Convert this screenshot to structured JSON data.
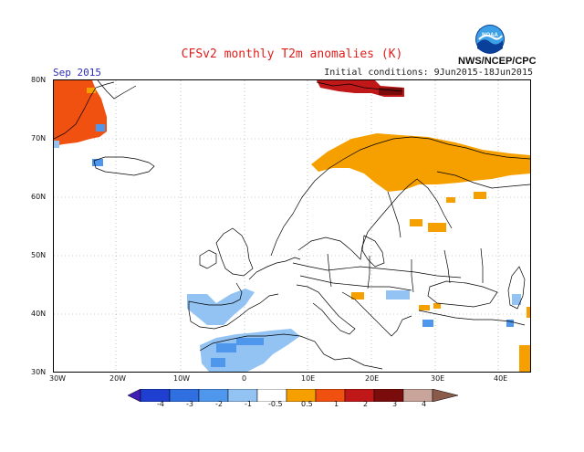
{
  "header": {
    "title": "CFSv2 monthly T2m anomalies (K)",
    "month": "Sep 2015",
    "initial_conditions": "Initial conditions: 9Jun2015-18Jun2015",
    "agency": "NWS/NCEP/CPC",
    "logo_text": "NOAA"
  },
  "axes": {
    "lat_labels": [
      "80N",
      "70N",
      "60N",
      "50N",
      "40N",
      "30N"
    ],
    "lon_labels": [
      "30W",
      "20W",
      "10W",
      "0",
      "10E",
      "20E",
      "30E",
      "40E"
    ]
  },
  "colorbar": {
    "labels": [
      "-4",
      "-3",
      "-2",
      "-1",
      "-0.5",
      "0.5",
      "1",
      "2",
      "3",
      "4"
    ],
    "colors": [
      "#3f1fb5",
      "#1f3fd0",
      "#2f6fe0",
      "#4f97ec",
      "#93c3f3",
      "#ffffff",
      "#f6a000",
      "#f05010",
      "#c01818",
      "#7a0c0c",
      "#c8a49a",
      "#8a5a4a"
    ]
  },
  "colors": {
    "warm_moderate": "#f6a000",
    "warm_strong": "#f05010",
    "warm_very_strong": "#c01818",
    "warm_extreme": "#7a0c0c",
    "cool_light": "#93c3f3",
    "cool_moderate": "#4f97ec",
    "coastline": "#000000",
    "grid": "#9a9a9a"
  },
  "anomaly_regions": [
    {
      "name": "Greenland",
      "category": "warm_strong"
    },
    {
      "name": "Svalbard",
      "category": "warm_very_strong"
    },
    {
      "name": "Northern Scandinavia",
      "category": "warm_moderate"
    },
    {
      "name": "Iberia",
      "category": "cool_light"
    },
    {
      "name": "North Africa",
      "category": "cool_light"
    },
    {
      "name": "Eastern Europe",
      "category": "warm_moderate"
    }
  ]
}
